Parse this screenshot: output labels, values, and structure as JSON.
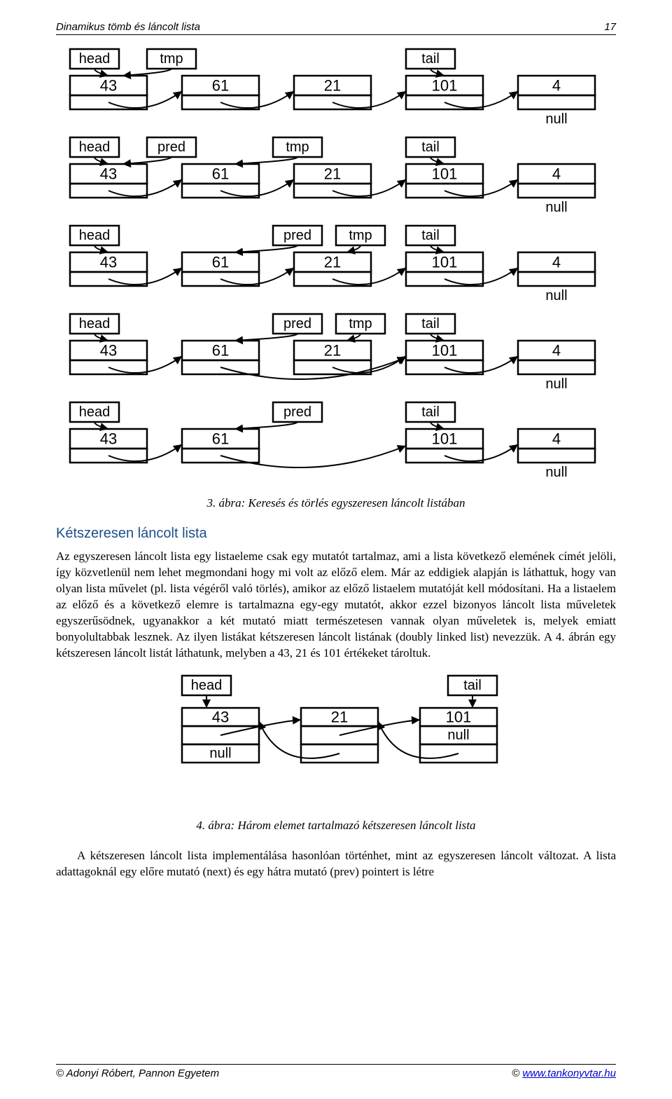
{
  "header": {
    "title": "Dinamikus tömb és láncolt lista",
    "page": "17"
  },
  "fig3": {
    "caption": "3. ábra: Keresés és törlés egyszeresen láncolt listában",
    "node_values": [
      "43",
      "61",
      "21",
      "101",
      "4"
    ],
    "null_label": "null",
    "rows": [
      {
        "labels": {
          "head": 0,
          "tmp": 0,
          "tail": 3
        },
        "deleted": []
      },
      {
        "labels": {
          "head": 0,
          "pred": 0,
          "tmp": 1,
          "tail": 3
        },
        "deleted": []
      },
      {
        "labels": {
          "head": 0,
          "pred": 1,
          "tmp": 2,
          "tail": 3
        },
        "deleted": []
      },
      {
        "labels": {
          "head": 0,
          "pred": 1,
          "tmp": 2,
          "tail": 3
        },
        "deleted": [
          2
        ],
        "skip_from": 1,
        "skip_to": 3
      },
      {
        "labels": {
          "head": 0,
          "pred": 1,
          "tail": 3
        },
        "deleted": [
          2
        ],
        "skip_from": 1,
        "skip_to": 3,
        "removed": 2
      }
    ],
    "style": {
      "label_font": 20,
      "value_font": 22,
      "null_font": 20,
      "box_stroke": "#000000",
      "box_stroke_width": 2.5,
      "text_color": "#000000"
    }
  },
  "section": {
    "title": "Kétszeresen láncolt lista",
    "paragraph": "Az egyszeresen láncolt lista egy listaeleme csak egy mutatót tartalmaz, ami a lista következő elemének címét jelöli, így közvetlenül nem lehet megmondani hogy mi volt az előző elem. Már az eddigiek alapján is láthattuk, hogy van olyan lista művelet (pl. lista végéről való törlés), amikor az előző listaelem mutatóját kell módosítani. Ha a listaelem az előző és a következő elemre is tartalmazna egy-egy mutatót, akkor ezzel bizonyos láncolt lista műveletek egyszerűsödnek, ugyanakkor a két mutató miatt természetesen vannak olyan műveletek is, melyek emiatt bonyolultabbak lesznek. Az ilyen listákat kétszeresen láncolt listának (doubly linked list) nevezzük. A 4. ábrán egy kétszeresen láncolt listát láthatunk, melyben a 43, 21 és 101 értékeket tároltuk."
  },
  "fig4": {
    "caption": "4. ábra: Három elemet tartalmazó kétszeresen láncolt lista",
    "head_label": "head",
    "tail_label": "tail",
    "null_label": "null",
    "values": [
      "43",
      "21",
      "101"
    ],
    "style": {
      "label_font": 20,
      "value_font": 22,
      "null_font": 20,
      "box_stroke": "#000000",
      "box_stroke_width": 2.5
    }
  },
  "closing_paragraph": "A kétszeresen láncolt lista implementálása hasonlóan történhet, mint az egyszeresen láncolt változat. A lista adattagoknál egy előre mutató (next) és egy hátra mutató (prev) pointert is létre",
  "footer": {
    "copyright": "© Adonyi Róbert, Pannon Egyetem",
    "link_prefix": "© ",
    "link": "www.tankonyvtar.hu"
  }
}
